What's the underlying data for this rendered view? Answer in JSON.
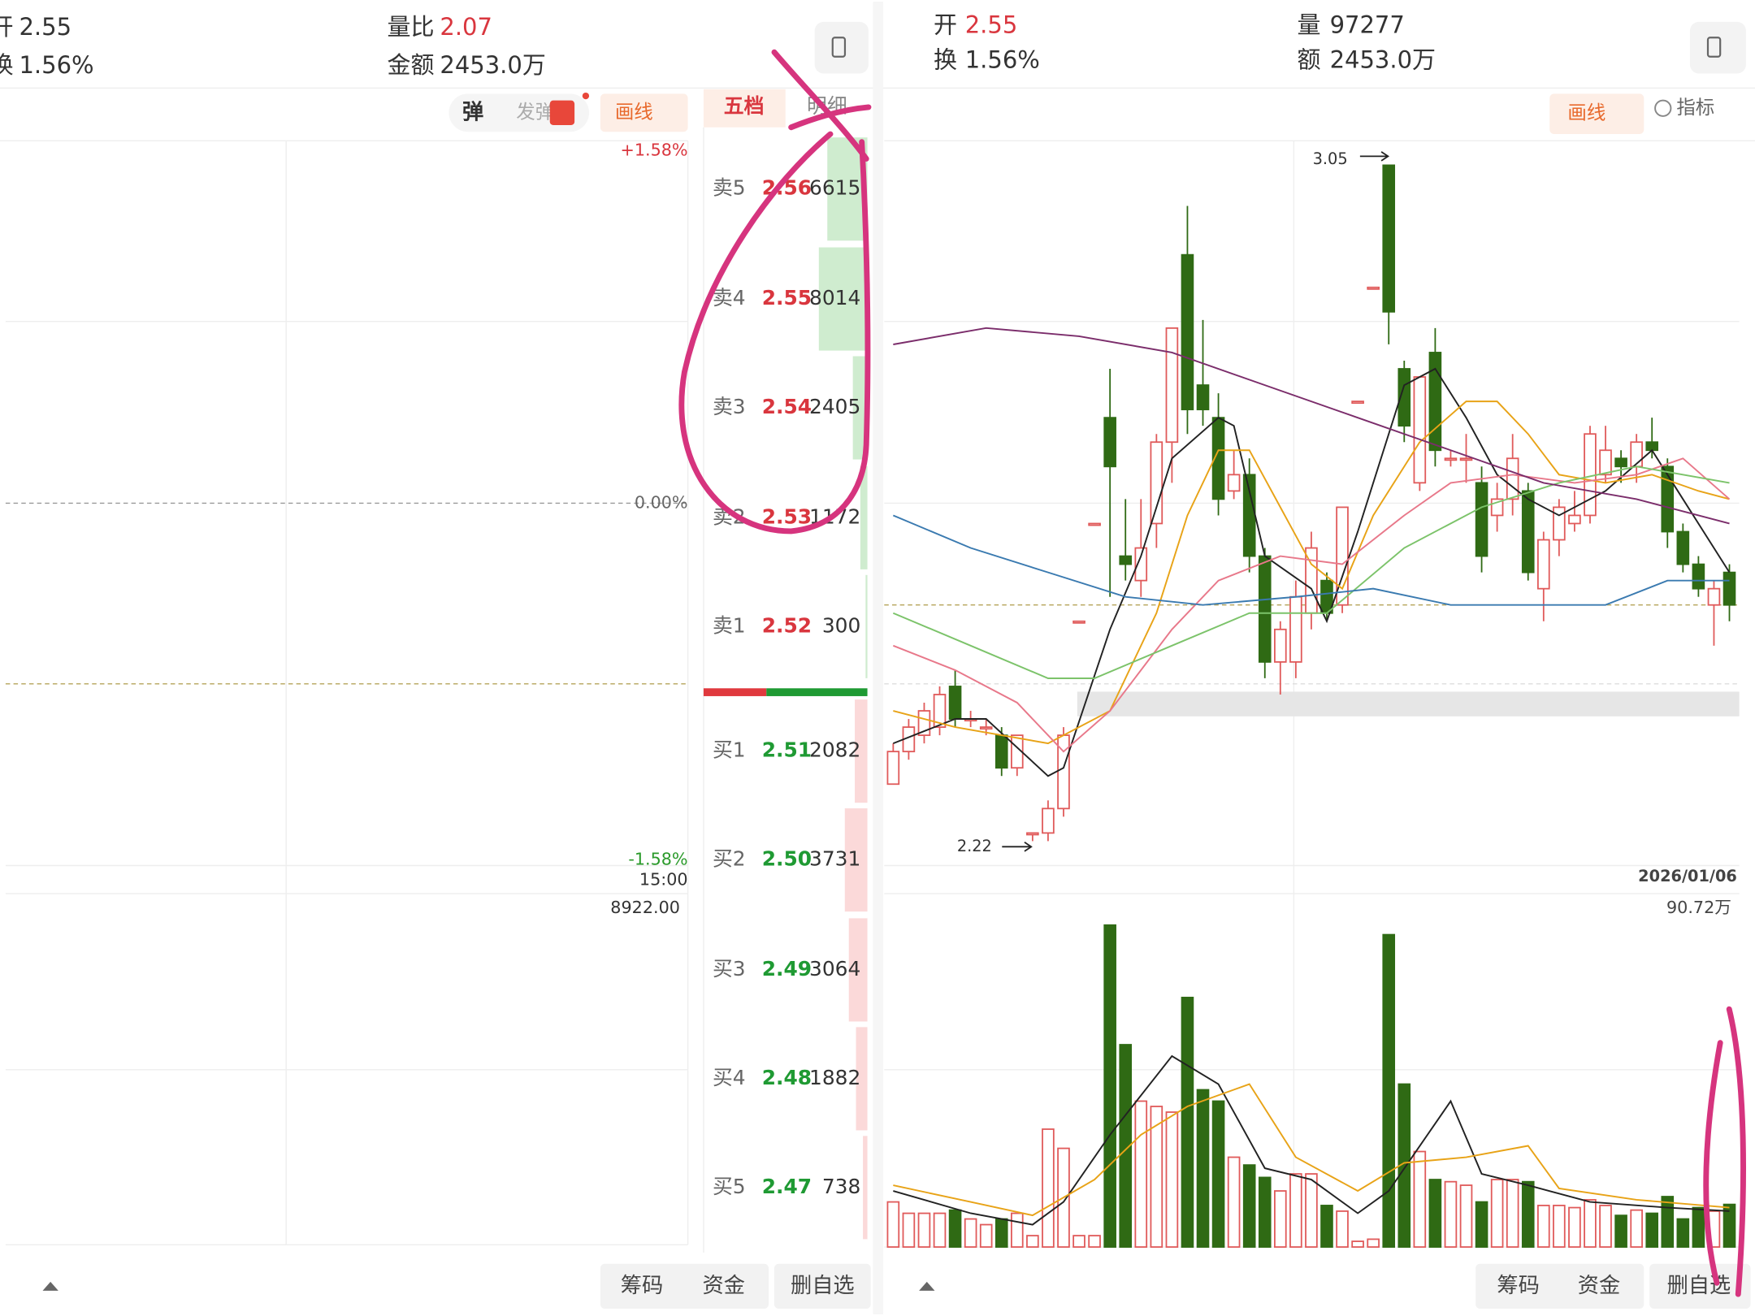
{
  "left": {
    "header": {
      "open_label": "开",
      "open": "2.55",
      "turnover_label": "换",
      "turnover": "1.56%",
      "vol_ratio_label": "量比",
      "vol_ratio": "2.07",
      "amount_label": "金额",
      "amount": "2453.0万"
    },
    "toolbar": {
      "danmu": "弹",
      "send": "发弹",
      "draw": "画线",
      "tab_book": "五档",
      "tab_detail": "明细"
    },
    "axis": {
      "top": "+1.58%",
      "mid": "0.00%",
      "bottom": "-1.58%",
      "time": "15:00",
      "volume": "8922.00"
    },
    "order_book": {
      "asks": [
        {
          "label": "卖5",
          "price": "2.56",
          "volume": 6615
        },
        {
          "label": "卖4",
          "price": "2.55",
          "volume": 8014
        },
        {
          "label": "卖3",
          "price": "2.54",
          "volume": 2405
        },
        {
          "label": "卖2",
          "price": "2.53",
          "volume": 1172
        },
        {
          "label": "卖1",
          "price": "2.52",
          "volume": 300
        }
      ],
      "bids": [
        {
          "label": "买1",
          "price": "2.51",
          "volume": 2082
        },
        {
          "label": "买2",
          "price": "2.50",
          "volume": 3731
        },
        {
          "label": "买3",
          "price": "2.49",
          "volume": 3064
        },
        {
          "label": "买4",
          "price": "2.48",
          "volume": 1882
        },
        {
          "label": "买5",
          "price": "2.47",
          "volume": 738
        }
      ]
    },
    "buttons": [
      "筹码",
      "资金",
      "删自选"
    ]
  },
  "right": {
    "header": {
      "open_label": "开",
      "open": "2.55",
      "turnover_label": "换",
      "turnover": "1.56%",
      "volume_label": "量",
      "volume": "97277",
      "amount_label": "额",
      "amount": "2453.0万"
    },
    "toolbar": {
      "draw": "画线",
      "indicator": "指标"
    },
    "chart": {
      "type": "candlestick",
      "ylim": [
        2.19,
        3.08
      ],
      "prev_close": 2.51,
      "date": "2026/01/06",
      "max_label": 3.05,
      "min_label": 2.22,
      "open": [
        2.29,
        2.33,
        2.35,
        2.36,
        2.41,
        2.37,
        2.36,
        2.35,
        2.31,
        2.23,
        2.23,
        2.26,
        2.49,
        2.61,
        2.74,
        2.57,
        2.54,
        2.61,
        2.71,
        2.94,
        2.78,
        2.74,
        2.65,
        2.67,
        2.57,
        2.44,
        2.44,
        2.5,
        2.54,
        2.51,
        2.76,
        2.9,
        3.05,
        2.8,
        2.66,
        2.82,
        2.69,
        2.69,
        2.66,
        2.62,
        2.64,
        2.65,
        2.53,
        2.59,
        2.61,
        2.62,
        2.67,
        2.69,
        2.68,
        2.71,
        2.68,
        2.6,
        2.56,
        2.51,
        2.55
      ],
      "high": [
        2.34,
        2.37,
        2.39,
        2.41,
        2.43,
        2.38,
        2.37,
        2.36,
        2.35,
        2.23,
        2.27,
        2.36,
        2.49,
        2.61,
        2.8,
        2.64,
        2.64,
        2.72,
        2.85,
        3.0,
        2.86,
        2.77,
        2.7,
        2.69,
        2.58,
        2.49,
        2.54,
        2.6,
        2.55,
        2.63,
        2.76,
        2.9,
        3.05,
        2.81,
        2.79,
        2.85,
        2.7,
        2.72,
        2.68,
        2.66,
        2.72,
        2.66,
        2.6,
        2.64,
        2.65,
        2.73,
        2.73,
        2.7,
        2.72,
        2.74,
        2.69,
        2.61,
        2.57,
        2.54,
        2.56
      ],
      "low": [
        2.29,
        2.32,
        2.34,
        2.35,
        2.36,
        2.36,
        2.35,
        2.3,
        2.3,
        2.22,
        2.22,
        2.25,
        2.49,
        2.61,
        2.52,
        2.54,
        2.52,
        2.58,
        2.66,
        2.72,
        2.73,
        2.62,
        2.64,
        2.55,
        2.42,
        2.4,
        2.42,
        2.48,
        2.49,
        2.5,
        2.76,
        2.9,
        2.83,
        2.71,
        2.65,
        2.68,
        2.68,
        2.66,
        2.55,
        2.6,
        2.62,
        2.54,
        2.49,
        2.57,
        2.6,
        2.61,
        2.66,
        2.66,
        2.66,
        2.69,
        2.58,
        2.55,
        2.52,
        2.46,
        2.49
      ],
      "close": [
        2.33,
        2.36,
        2.38,
        2.4,
        2.37,
        2.37,
        2.36,
        2.31,
        2.35,
        2.23,
        2.26,
        2.35,
        2.49,
        2.61,
        2.68,
        2.56,
        2.58,
        2.71,
        2.85,
        2.75,
        2.75,
        2.64,
        2.67,
        2.57,
        2.44,
        2.48,
        2.52,
        2.58,
        2.5,
        2.63,
        2.76,
        2.9,
        2.87,
        2.73,
        2.79,
        2.7,
        2.69,
        2.69,
        2.57,
        2.64,
        2.69,
        2.55,
        2.59,
        2.63,
        2.62,
        2.72,
        2.7,
        2.68,
        2.71,
        2.7,
        2.6,
        2.56,
        2.53,
        2.53,
        2.51
      ],
      "up_color": "#e05a5a",
      "down_color": "#2f6a14",
      "ma_lines": [
        {
          "color": "#222222",
          "x": [
            0,
            4,
            6,
            10,
            11,
            14,
            16,
            18,
            21,
            22,
            24,
            27,
            28,
            30,
            33,
            35,
            37,
            39,
            41,
            43,
            46,
            49,
            51,
            54
          ],
          "values": [
            2.34,
            2.37,
            2.37,
            2.3,
            2.31,
            2.48,
            2.57,
            2.69,
            2.74,
            2.73,
            2.57,
            2.53,
            2.49,
            2.6,
            2.78,
            2.8,
            2.74,
            2.67,
            2.64,
            2.62,
            2.65,
            2.7,
            2.64,
            2.55
          ]
        },
        {
          "color": "#e8a317",
          "x": [
            0,
            4,
            10,
            14,
            17,
            19,
            21,
            23,
            25,
            27,
            29,
            31,
            34,
            37,
            39,
            41,
            43,
            46,
            49,
            52,
            54
          ],
          "values": [
            2.38,
            2.36,
            2.34,
            2.38,
            2.5,
            2.62,
            2.7,
            2.7,
            2.63,
            2.56,
            2.53,
            2.62,
            2.71,
            2.76,
            2.76,
            2.72,
            2.67,
            2.66,
            2.67,
            2.65,
            2.64
          ]
        },
        {
          "color": "#e8788a",
          "x": [
            0,
            4,
            8,
            11,
            14,
            18,
            21,
            25,
            29,
            33,
            36,
            40,
            44,
            48,
            51,
            54
          ],
          "values": [
            2.46,
            2.43,
            2.39,
            2.33,
            2.38,
            2.48,
            2.54,
            2.57,
            2.56,
            2.62,
            2.66,
            2.67,
            2.66,
            2.67,
            2.69,
            2.64
          ]
        },
        {
          "color": "#7cc36a",
          "x": [
            0,
            5,
            10,
            13,
            18,
            23,
            28,
            33,
            38,
            43,
            48,
            54
          ],
          "values": [
            2.5,
            2.46,
            2.42,
            2.42,
            2.46,
            2.5,
            2.5,
            2.58,
            2.63,
            2.66,
            2.68,
            2.66
          ]
        },
        {
          "color": "#3a7ab0",
          "x": [
            0,
            5,
            10,
            15,
            20,
            26,
            31,
            36,
            41,
            46,
            50,
            54
          ],
          "values": [
            2.62,
            2.58,
            2.55,
            2.52,
            2.51,
            2.52,
            2.53,
            2.51,
            2.51,
            2.51,
            2.54,
            2.54
          ]
        },
        {
          "color": "#7b2d6b",
          "x": [
            0,
            6,
            12,
            18,
            24,
            30,
            36,
            42,
            48,
            54
          ],
          "values": [
            2.83,
            2.85,
            2.84,
            2.82,
            2.78,
            2.74,
            2.7,
            2.66,
            2.64,
            2.61
          ]
        }
      ]
    },
    "volume": {
      "vmax": {
        "value": 90.72,
        "label": "90.72万"
      },
      "values": [
        12.7,
        9.5,
        9.5,
        9.5,
        10.4,
        7.9,
        6.3,
        7.9,
        9.5,
        3.2,
        33.2,
        27.8,
        3.2,
        3.2,
        90.7,
        57.0,
        41.1,
        39.6,
        38.0,
        70.3,
        44.3,
        41.1,
        25.3,
        23.1,
        19.6,
        15.8,
        20.6,
        20.6,
        11.7,
        10.1,
        1.6,
        2.2,
        88.0,
        45.9,
        26.9,
        19.0,
        18.4,
        17.4,
        12.7,
        19.0,
        19.0,
        18.4,
        11.7,
        11.7,
        11.1,
        13.3,
        11.7,
        8.9,
        10.4,
        9.5,
        14.2,
        7.9,
        11.1,
        10.1,
        12.0
      ],
      "ma_lines": [
        {
          "color": "#222222",
          "x": [
            0,
            5,
            9,
            11,
            14,
            18,
            21,
            24,
            27,
            30,
            32,
            36,
            38,
            41,
            45,
            50,
            54
          ],
          "values": [
            15.8,
            9.5,
            6.3,
            12.7,
            31.6,
            53.8,
            45.9,
            22.2,
            19.0,
            9.5,
            15.8,
            41.1,
            20.6,
            17.4,
            12.7,
            11.1,
            10.1
          ]
        },
        {
          "color": "#e8a317",
          "x": [
            0,
            5,
            9,
            13,
            16,
            19,
            23,
            26,
            30,
            33,
            37,
            41,
            43,
            48,
            54
          ],
          "values": [
            17.4,
            12.7,
            8.9,
            19.0,
            31.6,
            39.6,
            45.9,
            25.3,
            15.8,
            23.7,
            25.3,
            28.5,
            16.5,
            13.3,
            11.1
          ]
        }
      ]
    },
    "buttons": [
      "筹码",
      "资金",
      "删自选"
    ]
  }
}
